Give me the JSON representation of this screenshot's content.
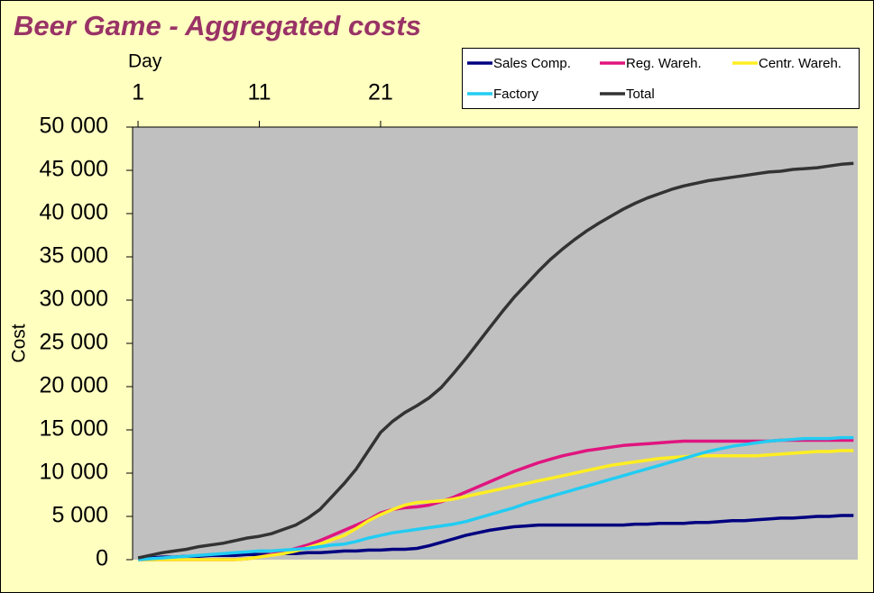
{
  "chart_data": {
    "type": "line",
    "title": "Beer Game - Aggregated costs",
    "x_label": "Day",
    "y_label": "Cost",
    "x": [
      1,
      2,
      3,
      4,
      5,
      6,
      7,
      8,
      9,
      10,
      11,
      12,
      13,
      14,
      15,
      16,
      17,
      18,
      19,
      20,
      21,
      22,
      23,
      24,
      25,
      26,
      27,
      28,
      29,
      30,
      31,
      32,
      33,
      34,
      35,
      36,
      37,
      38,
      39,
      40,
      41,
      42,
      43,
      44,
      45,
      46,
      47,
      48,
      49,
      50,
      51,
      52,
      53,
      54,
      55,
      56,
      57,
      58,
      59,
      60
    ],
    "xlim": [
      0.55,
      60.35
    ],
    "xticks": [
      1,
      11,
      21
    ],
    "ylim": [
      0,
      50000
    ],
    "yticks": [
      {
        "value": 0,
        "label": "0"
      },
      {
        "value": 5000,
        "label": "5 000"
      },
      {
        "value": 10000,
        "label": "10 000"
      },
      {
        "value": 15000,
        "label": "15 000"
      },
      {
        "value": 20000,
        "label": "20 000"
      },
      {
        "value": 25000,
        "label": "25 000"
      },
      {
        "value": 30000,
        "label": "30 000"
      },
      {
        "value": 35000,
        "label": "35 000"
      },
      {
        "value": 40000,
        "label": "40 000"
      },
      {
        "value": 45000,
        "label": "45 000"
      },
      {
        "value": 50000,
        "label": "50 000"
      }
    ],
    "legend": "top-right",
    "series": [
      {
        "name": "Sales Comp.",
        "color": "#000080",
        "values": [
          200,
          200,
          300,
          300,
          400,
          400,
          500,
          500,
          500,
          600,
          600,
          600,
          700,
          700,
          800,
          800,
          900,
          1000,
          1000,
          1100,
          1100,
          1200,
          1200,
          1300,
          1600,
          2000,
          2400,
          2800,
          3100,
          3400,
          3600,
          3800,
          3900,
          4000,
          4000,
          4000,
          4000,
          4000,
          4000,
          4000,
          4000,
          4100,
          4100,
          4200,
          4200,
          4200,
          4300,
          4300,
          4400,
          4500,
          4500,
          4600,
          4700,
          4800,
          4800,
          4900,
          5000,
          5000,
          5100,
          5100
        ]
      },
      {
        "name": "Reg. Wareh.",
        "color": "#e0157f",
        "values": [
          0,
          0,
          0,
          0,
          0,
          0,
          0,
          0,
          0,
          100,
          300,
          600,
          900,
          1300,
          1700,
          2200,
          2800,
          3400,
          4000,
          4600,
          5400,
          5800,
          6000,
          6100,
          6300,
          6700,
          7200,
          7800,
          8400,
          9000,
          9600,
          10200,
          10700,
          11200,
          11600,
          12000,
          12300,
          12600,
          12800,
          13000,
          13200,
          13300,
          13400,
          13500,
          13600,
          13700,
          13700,
          13700,
          13700,
          13700,
          13700,
          13700,
          13700,
          13800,
          13800,
          13800,
          13800,
          13800,
          13800,
          13800
        ]
      },
      {
        "name": "Centr. Wareh.",
        "color": "#ffee22",
        "values": [
          0,
          0,
          0,
          0,
          0,
          0,
          0,
          0,
          0,
          100,
          300,
          500,
          700,
          1000,
          1400,
          1800,
          2300,
          2800,
          3600,
          4500,
          5200,
          5800,
          6300,
          6600,
          6700,
          6800,
          7000,
          7300,
          7600,
          7900,
          8200,
          8500,
          8800,
          9100,
          9400,
          9700,
          10000,
          10300,
          10600,
          10900,
          11100,
          11300,
          11500,
          11700,
          11800,
          11900,
          12000,
          12000,
          12000,
          12000,
          12000,
          12000,
          12100,
          12200,
          12300,
          12400,
          12500,
          12500,
          12600,
          12600
        ]
      },
      {
        "name": "Factory",
        "color": "#22ccf2",
        "values": [
          0,
          100,
          200,
          300,
          400,
          500,
          600,
          700,
          800,
          900,
          1000,
          1000,
          1100,
          1200,
          1300,
          1500,
          1700,
          1800,
          2100,
          2500,
          2800,
          3100,
          3300,
          3500,
          3700,
          3900,
          4100,
          4400,
          4800,
          5200,
          5600,
          6000,
          6500,
          6900,
          7300,
          7700,
          8100,
          8500,
          8900,
          9300,
          9700,
          10100,
          10500,
          10900,
          11300,
          11700,
          12100,
          12500,
          12800,
          13100,
          13300,
          13500,
          13700,
          13800,
          13900,
          14000,
          14000,
          14000,
          14100,
          14100
        ]
      },
      {
        "name": "Total",
        "color": "#333333",
        "values": [
          200,
          500,
          800,
          1000,
          1200,
          1500,
          1700,
          1900,
          2200,
          2500,
          2700,
          3000,
          3500,
          4000,
          4800,
          5800,
          7300,
          8800,
          10500,
          12600,
          14700,
          16000,
          17000,
          17800,
          18700,
          19900,
          21500,
          23200,
          25000,
          26800,
          28600,
          30300,
          31800,
          33300,
          34700,
          35900,
          37000,
          38000,
          38900,
          39700,
          40500,
          41200,
          41800,
          42300,
          42800,
          43200,
          43500,
          43800,
          44000,
          44200,
          44400,
          44600,
          44800,
          44900,
          45100,
          45200,
          45300,
          45500,
          45700,
          45800
        ]
      }
    ]
  }
}
